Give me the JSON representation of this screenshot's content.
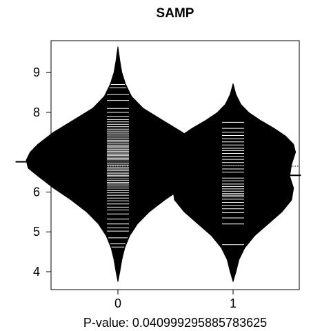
{
  "chart_data": {
    "type": "beanplot",
    "title": "SAMP",
    "xlabel": "P-value: 0.0409992958857836​25",
    "ylabel": "",
    "categories": [
      "0",
      "1"
    ],
    "y_ticks": [
      4,
      5,
      6,
      7,
      8,
      9
    ],
    "ylim": [
      3.55,
      9.8
    ],
    "overall_mean": 6.65,
    "grid": false,
    "legend": "none",
    "colors": {
      "bean_fill": "#000000",
      "bean_lines": "#ffffff",
      "mean_line": "#000000",
      "background": "#ffffff"
    },
    "groups": [
      {
        "category": "0",
        "mean": 6.76,
        "range": [
          3.75,
          9.65
        ],
        "density": [
          [
            3.75,
            0.0
          ],
          [
            4.0,
            0.01
          ],
          [
            4.3,
            0.02
          ],
          [
            4.6,
            0.035
          ],
          [
            4.9,
            0.06
          ],
          [
            5.2,
            0.1
          ],
          [
            5.5,
            0.16
          ],
          [
            5.8,
            0.24
          ],
          [
            6.1,
            0.33
          ],
          [
            6.4,
            0.41
          ],
          [
            6.6,
            0.46
          ],
          [
            6.8,
            0.47
          ],
          [
            7.0,
            0.45
          ],
          [
            7.2,
            0.41
          ],
          [
            7.5,
            0.33
          ],
          [
            7.8,
            0.23
          ],
          [
            8.1,
            0.13
          ],
          [
            8.4,
            0.07
          ],
          [
            8.7,
            0.04
          ],
          [
            9.0,
            0.02
          ],
          [
            9.3,
            0.01
          ],
          [
            9.65,
            0.0
          ]
        ],
        "observations": [
          4.62,
          4.7,
          4.85,
          5.02,
          5.1,
          5.2,
          5.32,
          5.45,
          5.55,
          5.62,
          5.7,
          5.78,
          5.85,
          5.92,
          5.98,
          6.04,
          6.1,
          6.15,
          6.2,
          6.24,
          6.29,
          6.33,
          6.38,
          6.42,
          6.46,
          6.5,
          6.54,
          6.58,
          6.62,
          6.65,
          6.68,
          6.72,
          6.75,
          6.78,
          6.82,
          6.85,
          6.88,
          6.92,
          6.95,
          6.98,
          7.02,
          7.05,
          7.08,
          7.12,
          7.15,
          7.18,
          7.22,
          7.26,
          7.3,
          7.34,
          7.38,
          7.43,
          7.48,
          7.53,
          7.58,
          7.64,
          7.7,
          7.76,
          7.82,
          7.9,
          8.0,
          8.1,
          8.3,
          8.45,
          8.62,
          8.7
        ]
      },
      {
        "category": "1",
        "mean": 6.42,
        "range": [
          3.75,
          8.72
        ],
        "density": [
          [
            3.75,
            0.0
          ],
          [
            4.0,
            0.015
          ],
          [
            4.3,
            0.03
          ],
          [
            4.6,
            0.06
          ],
          [
            4.9,
            0.11
          ],
          [
            5.2,
            0.18
          ],
          [
            5.5,
            0.25
          ],
          [
            5.8,
            0.3
          ],
          [
            6.1,
            0.31
          ],
          [
            6.4,
            0.29
          ],
          [
            6.7,
            0.3
          ],
          [
            7.0,
            0.32
          ],
          [
            7.2,
            0.31
          ],
          [
            7.4,
            0.27
          ],
          [
            7.6,
            0.21
          ],
          [
            7.8,
            0.14
          ],
          [
            8.0,
            0.08
          ],
          [
            8.2,
            0.04
          ],
          [
            8.45,
            0.015
          ],
          [
            8.72,
            0.0
          ]
        ],
        "observations": [
          4.68,
          5.2,
          5.35,
          5.48,
          5.58,
          5.66,
          5.74,
          5.82,
          5.88,
          5.92,
          5.96,
          6.02,
          6.08,
          6.14,
          6.2,
          6.28,
          6.35,
          6.42,
          6.5,
          6.58,
          6.66,
          6.74,
          6.82,
          6.9,
          6.97,
          7.04,
          7.1,
          7.18,
          7.26,
          7.34,
          7.42,
          7.5,
          7.6,
          7.75
        ]
      }
    ]
  }
}
